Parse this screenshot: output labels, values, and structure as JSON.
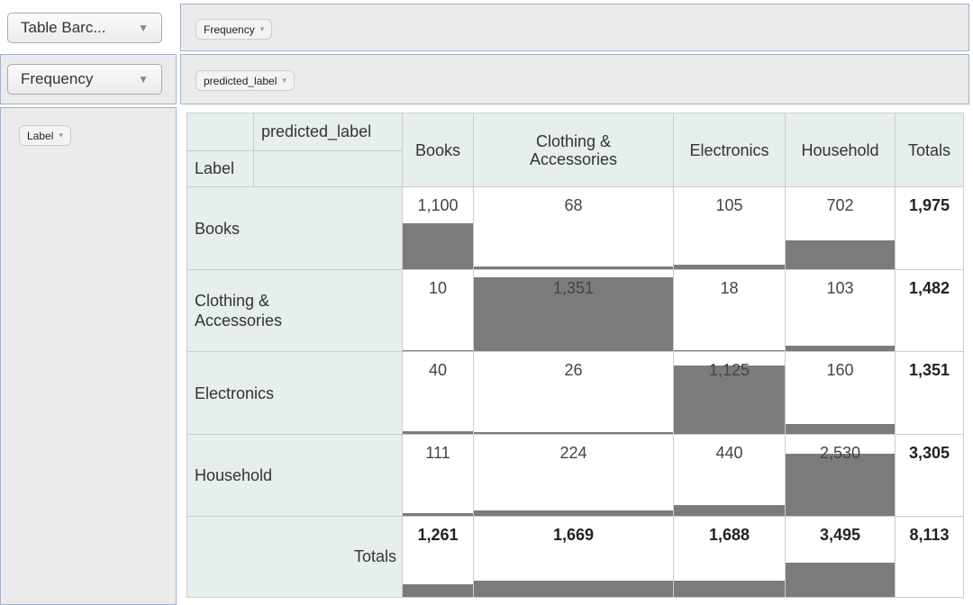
{
  "renderer": {
    "label": "Table Barc...",
    "arrow": "▼"
  },
  "aggregator": {
    "label": "Frequency",
    "arrow": "▼"
  },
  "cols_pill": {
    "label": "Frequency",
    "tri": "▾"
  },
  "rows_pill_top": {
    "label": "predicted_label",
    "tri": "▾"
  },
  "row_attr_pill": {
    "label": "Label",
    "tri": "▾"
  },
  "table": {
    "col_axis": "predicted_label",
    "row_axis": "Label",
    "totals_header": "Totals",
    "totals_label": "Totals",
    "columns": [
      "Books",
      "Clothing &\nAccessories",
      "Electronics",
      "Household"
    ],
    "rows": [
      {
        "label": "Books",
        "values": [
          "1,100",
          "68",
          "105",
          "702"
        ],
        "fill": [
          0.557,
          0.034,
          0.053,
          0.355
        ],
        "total": "1,975"
      },
      {
        "label": "Clothing &\nAccessories",
        "values": [
          "10",
          "1,351",
          "18",
          "103"
        ],
        "fill": [
          0.007,
          0.912,
          0.012,
          0.07
        ],
        "total": "1,482"
      },
      {
        "label": "Electronics",
        "values": [
          "40",
          "26",
          "1,125",
          "160"
        ],
        "fill": [
          0.03,
          0.019,
          0.833,
          0.118
        ],
        "total": "1,351"
      },
      {
        "label": "Household",
        "values": [
          "111",
          "224",
          "440",
          "2,530"
        ],
        "fill": [
          0.034,
          0.068,
          0.133,
          0.765
        ],
        "total": "3,305"
      }
    ],
    "col_totals": {
      "values": [
        "1,261",
        "1,669",
        "1,688",
        "3,495"
      ],
      "fill": [
        0.155,
        0.206,
        0.208,
        0.431
      ]
    },
    "grand_total": "8,113"
  }
}
